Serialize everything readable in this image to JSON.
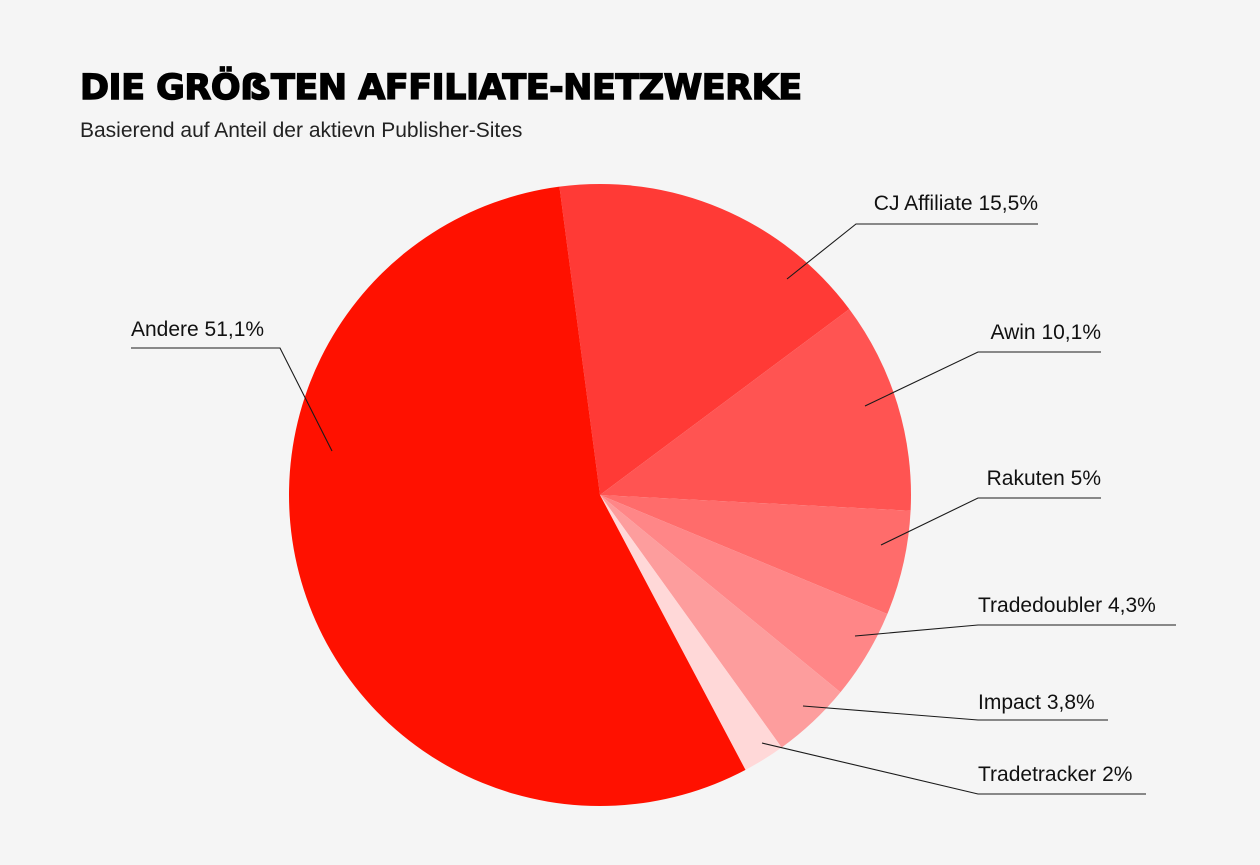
{
  "title": "DIE GRÖẞTEN AFFILIATE-NETZWERKE",
  "subtitle": "Basierend auf Anteil der aktievn Publisher-Sites",
  "chart_data": {
    "type": "pie",
    "title": "DIE GRÖẞTEN AFFILIATE-NETZWERKE",
    "subtitle": "Basierend auf Anteil der aktievn Publisher-Sites",
    "slices": [
      {
        "name": "CJ Affiliate",
        "value": 15.5,
        "label": "CJ Affiliate 15,5%",
        "color": "#ff3a36"
      },
      {
        "name": "Awin",
        "value": 10.1,
        "label": "Awin 10,1%",
        "color": "#ff5452"
      },
      {
        "name": "Rakuten",
        "value": 5,
        "label": "Rakuten 5%",
        "color": "#ff6c6b"
      },
      {
        "name": "Tradedoubler",
        "value": 4.3,
        "label": "Tradedoubler 4,3%",
        "color": "#ff8687"
      },
      {
        "name": "Impact",
        "value": 3.8,
        "label": "Impact 3,8%",
        "color": "#fd9d9d"
      },
      {
        "name": "Tradetracker",
        "value": 2,
        "label": "Tradetracker 2%",
        "color": "#ffd8d8"
      },
      {
        "name": "Andere",
        "value": 51.1,
        "label": "Andere 51,1%",
        "color": "#ff1100"
      }
    ],
    "start_angle_deg": -7.5,
    "direction": "clockwise",
    "legend": "none"
  }
}
